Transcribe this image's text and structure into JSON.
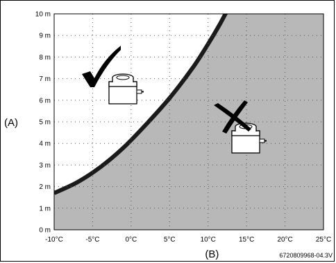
{
  "chart_data": {
    "type": "area",
    "x_ticks": [
      "-10°C",
      "-5°C",
      "0°C",
      "5°C",
      "10°C",
      "15°C",
      "20°C",
      "25°C"
    ],
    "y_ticks": [
      "0 m",
      "1 m",
      "2 m",
      "3 m",
      "4 m",
      "5 m",
      "6 m",
      "7 m",
      "8 m",
      "9 m",
      "10 m"
    ],
    "xlim": [
      -10,
      25
    ],
    "ylim": [
      0,
      10
    ],
    "grid": "dotted",
    "boundary_curve": {
      "x": [
        -10,
        -7,
        -4,
        -1,
        2,
        5,
        8,
        10,
        11.5,
        12.7
      ],
      "y": [
        1.7,
        2.2,
        2.9,
        3.8,
        4.9,
        6.1,
        7.5,
        8.6,
        9.5,
        10.3
      ]
    },
    "regions": [
      {
        "side": "above-left",
        "fill": "#ffffff",
        "marker": "checkmark"
      },
      {
        "side": "below-right",
        "fill": "#b8b8b8",
        "marker": "cross"
      }
    ],
    "axis_labels": {
      "y": "(A)",
      "x": "(B)"
    },
    "code": "6720809968-04.3V"
  },
  "colors": {
    "shaded": "#b8b8b8",
    "curve": "#1a1a1a",
    "grid": "#555555"
  },
  "icons": [
    "checkmark-icon",
    "terminal-unit-icon",
    "cross-icon"
  ]
}
